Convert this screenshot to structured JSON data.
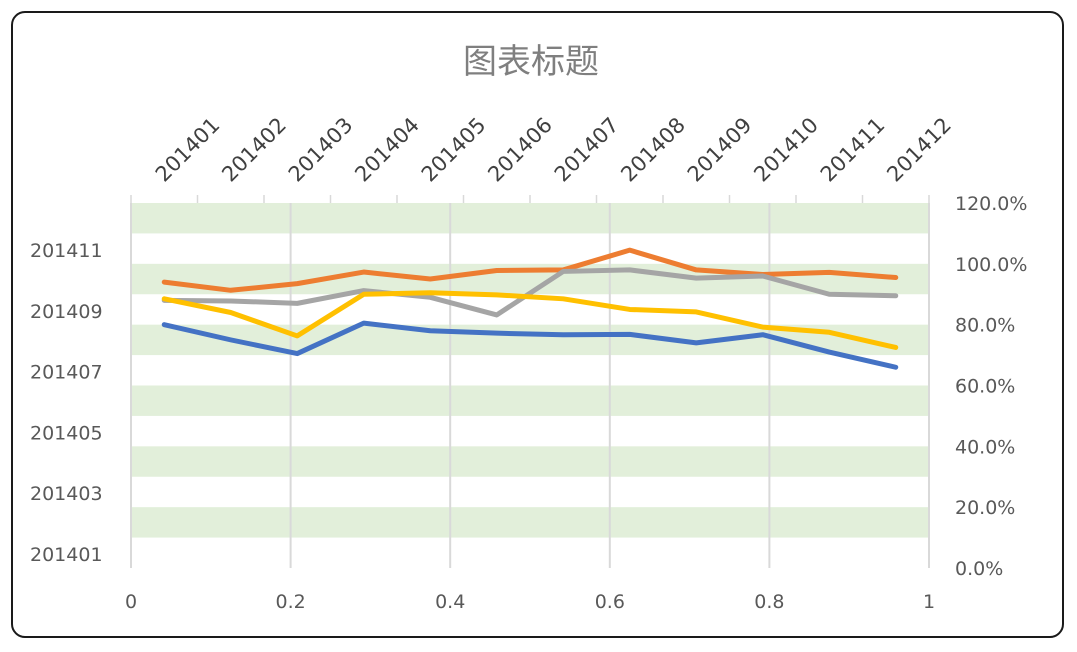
{
  "chart_data": {
    "type": "line",
    "title": "图表标题",
    "x_bottom": {
      "range": [
        0,
        1
      ],
      "ticks": [
        "0",
        "0.2",
        "0.4",
        "0.6",
        "0.8",
        "1"
      ]
    },
    "x_top": {
      "ticks": [
        "201401",
        "201402",
        "201403",
        "201404",
        "201405",
        "201406",
        "201407",
        "201408",
        "201409",
        "201410",
        "201411",
        "201412"
      ]
    },
    "y_left": {
      "ticks": [
        "201401",
        "201403",
        "201405",
        "201407",
        "201409",
        "201411"
      ]
    },
    "y_right": {
      "range": [
        0,
        1.2
      ],
      "ticks": [
        "0.0%",
        "20.0%",
        "40.0%",
        "60.0%",
        "80.0%",
        "100.0%",
        "120.0%"
      ]
    },
    "categories": [
      "201401",
      "201402",
      "201403",
      "201404",
      "201405",
      "201406",
      "201407",
      "201408",
      "201409",
      "201410",
      "201411",
      "201412"
    ],
    "grid": "alternating horizontal bands",
    "band_color": "#e2efda",
    "series": [
      {
        "color": "#4472c4",
        "values": [
          0.8,
          0.75,
          0.705,
          0.805,
          0.78,
          0.772,
          0.767,
          0.768,
          0.74,
          0.767,
          0.71,
          0.66
        ]
      },
      {
        "color": "#ed7d31",
        "values": [
          0.94,
          0.913,
          0.935,
          0.973,
          0.95,
          0.978,
          0.98,
          1.045,
          0.98,
          0.965,
          0.972,
          0.955
        ]
      },
      {
        "color": "#a5a5a5",
        "values": [
          0.88,
          0.878,
          0.87,
          0.912,
          0.89,
          0.832,
          0.975,
          0.98,
          0.953,
          0.96,
          0.9,
          0.895
        ]
      },
      {
        "color": "#ffc000",
        "values": [
          0.885,
          0.84,
          0.763,
          0.9,
          0.905,
          0.898,
          0.885,
          0.85,
          0.842,
          0.792,
          0.775,
          0.725
        ]
      }
    ]
  }
}
